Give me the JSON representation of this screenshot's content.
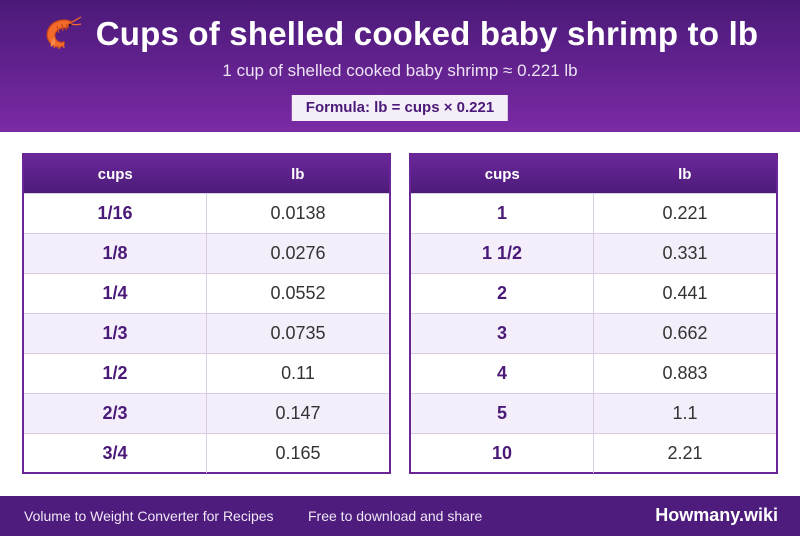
{
  "header": {
    "title": "Cups of shelled cooked baby shrimp to lb",
    "subtitle": "1 cup of shelled cooked baby shrimp ≈ 0.221 lb",
    "formula": "Formula: lb = cups × 0.221",
    "icon": "shrimp-icon"
  },
  "tables": [
    {
      "headers": [
        "cups",
        "lb"
      ],
      "rows": [
        [
          "1/16",
          "0.0138"
        ],
        [
          "1/8",
          "0.0276"
        ],
        [
          "1/4",
          "0.0552"
        ],
        [
          "1/3",
          "0.0735"
        ],
        [
          "1/2",
          "0.11"
        ],
        [
          "2/3",
          "0.147"
        ],
        [
          "3/4",
          "0.165"
        ]
      ]
    },
    {
      "headers": [
        "cups",
        "lb"
      ],
      "rows": [
        [
          "1",
          "0.221"
        ],
        [
          "1 1/2",
          "0.331"
        ],
        [
          "2",
          "0.441"
        ],
        [
          "3",
          "0.662"
        ],
        [
          "4",
          "0.883"
        ],
        [
          "5",
          "1.1"
        ],
        [
          "10",
          "2.21"
        ]
      ]
    }
  ],
  "footer": {
    "left": "Volume to Weight Converter for Recipes",
    "middle": "Free to download and share",
    "brand": "Howmany.wiki"
  },
  "colors": {
    "header_top": "#4b1a78",
    "header_bottom": "#7a2aa5",
    "accent": "#4b1a78",
    "footer": "#4d1c7c"
  }
}
